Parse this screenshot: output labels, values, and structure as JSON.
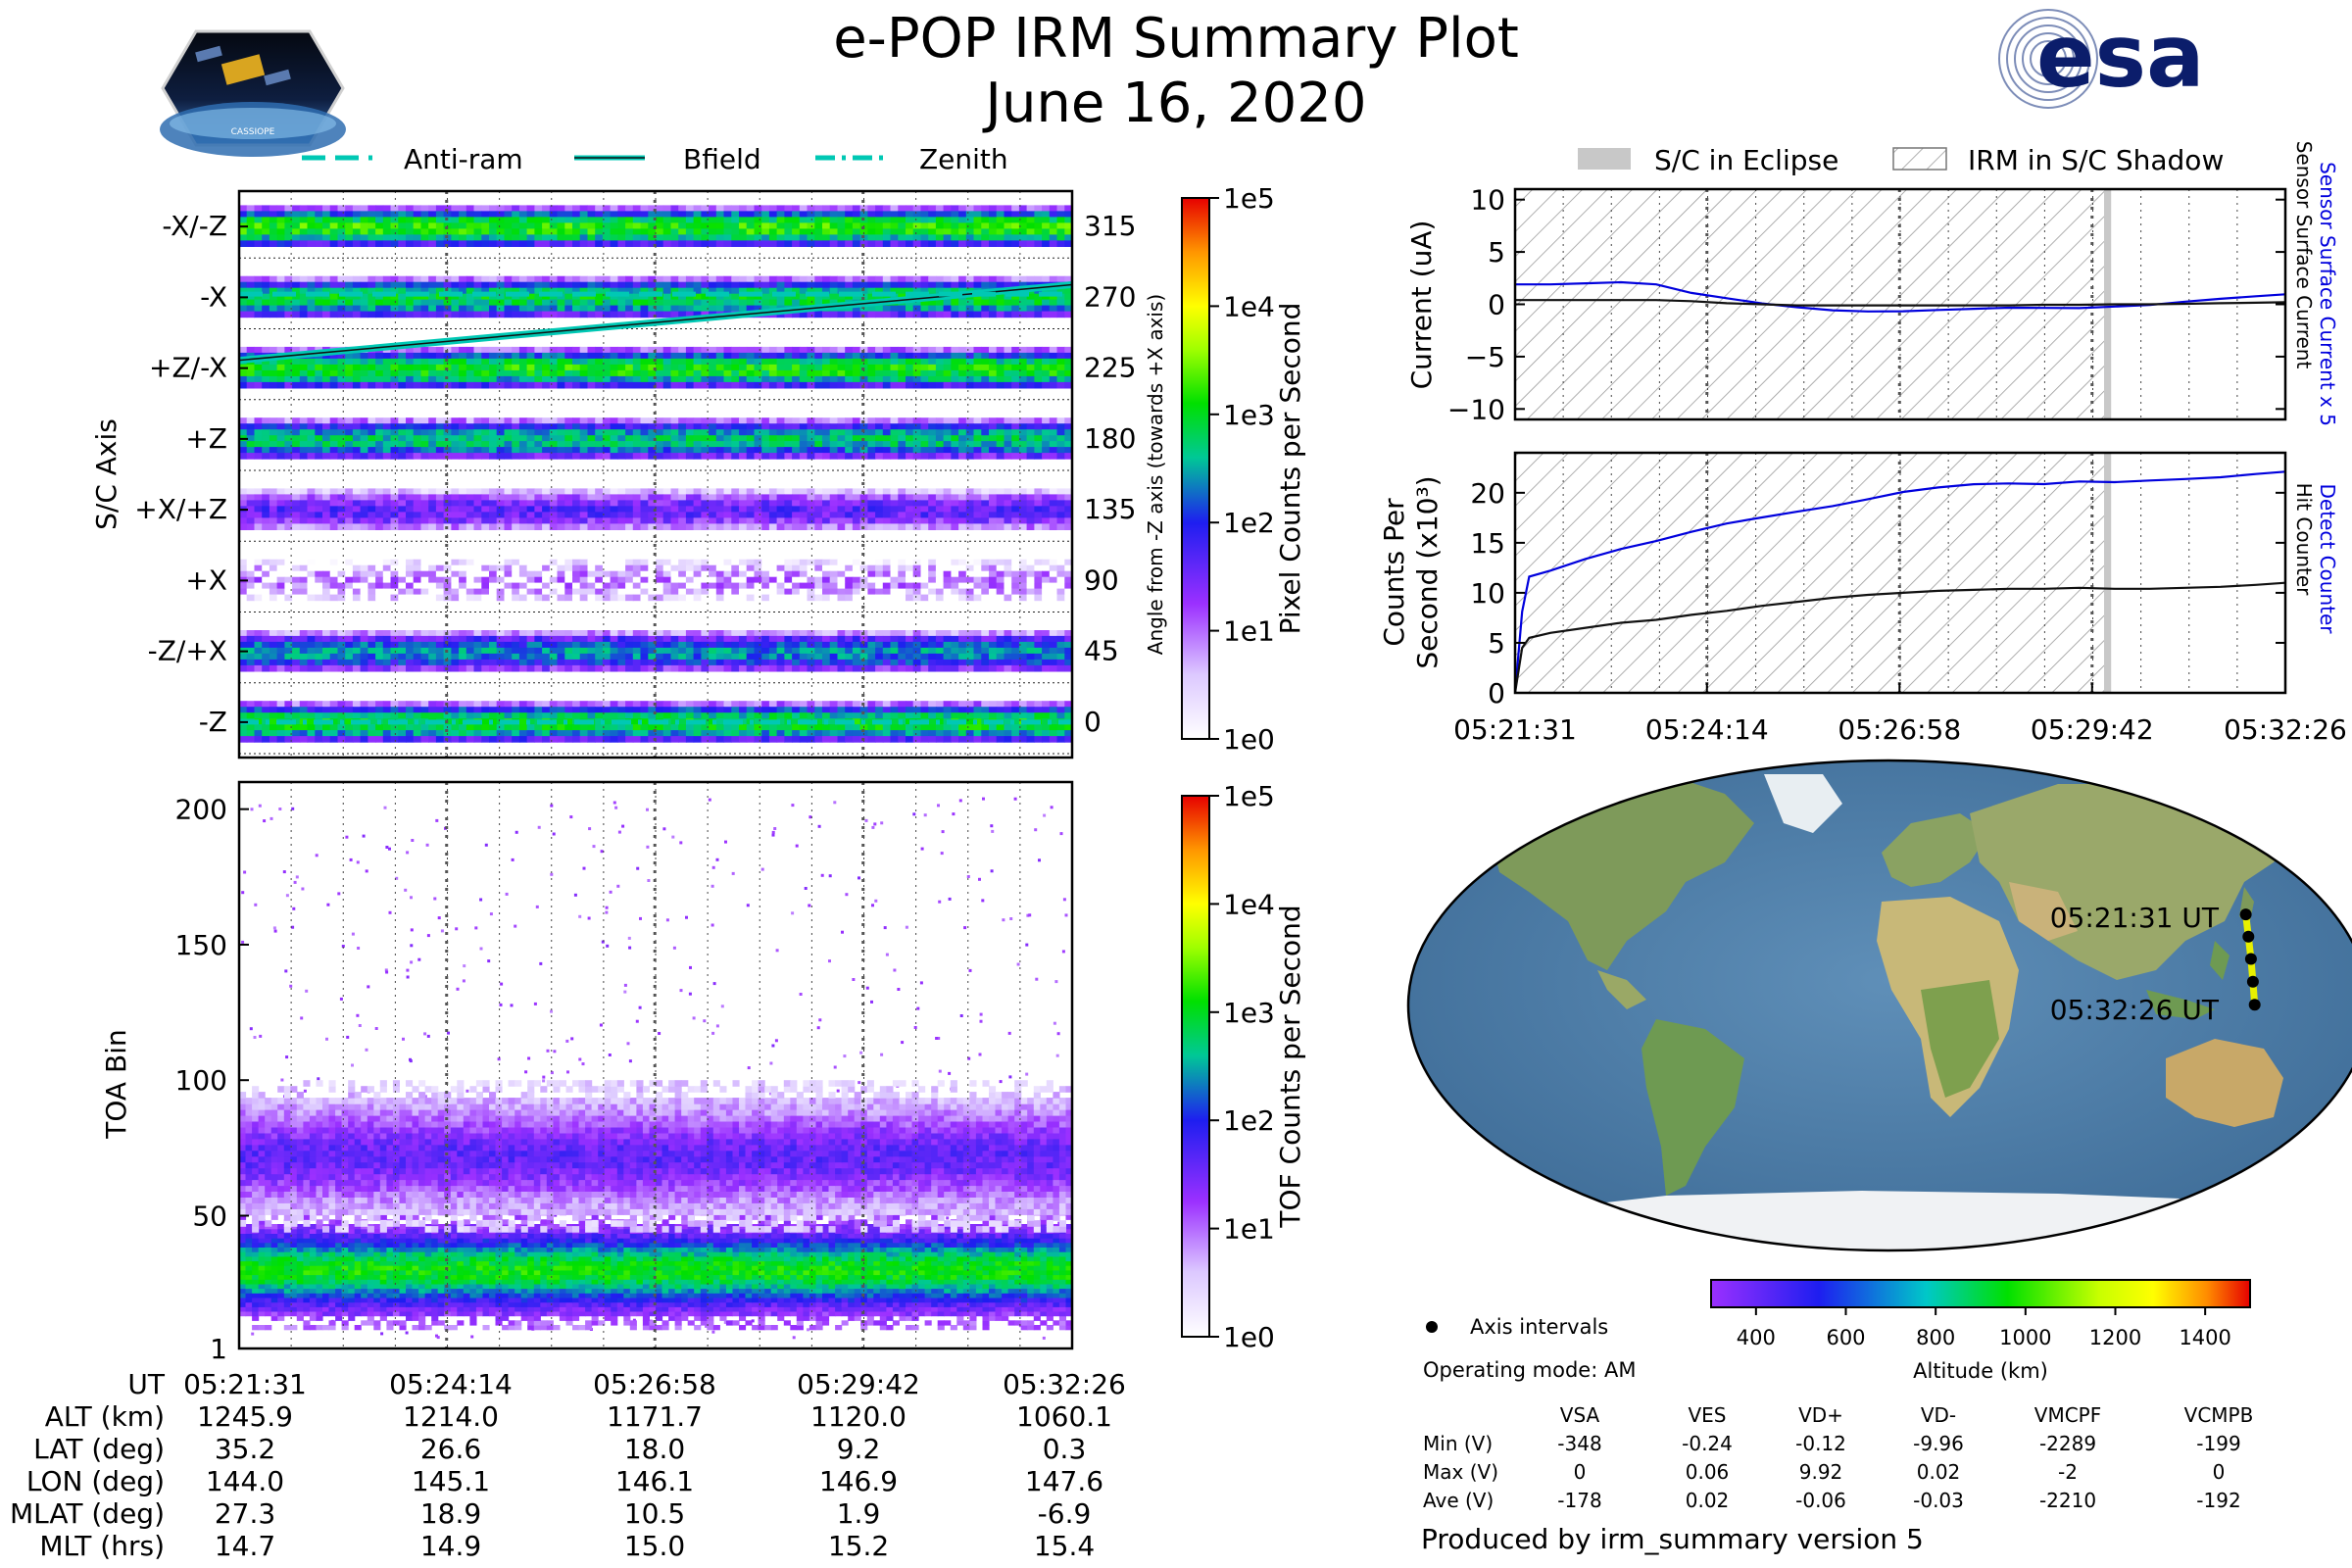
{
  "header": {
    "title": "e-POP IRM Summary Plot",
    "date": "June 16, 2020",
    "mission_logo_text": "CASSIOPE",
    "agency_logo_text": "esa"
  },
  "colors": {
    "bfield": "#00c8b4",
    "dark_line": "#111111",
    "blue_line": "#0000dd",
    "eclipse_gray": "#c8c8c8",
    "grid": "#555555"
  },
  "chart_data": [
    {
      "id": "sc-axis-panel",
      "type": "heatmap",
      "ylabel": "S/C Axis",
      "y2label": "Angle from -Z axis (towards +X axis)",
      "legend": [
        {
          "label": "Anti-ram",
          "style": "dashed"
        },
        {
          "label": "Bfield",
          "style": "solid"
        },
        {
          "label": "Zenith",
          "style": "dashdot"
        }
      ],
      "axes": [
        "-X/-Z",
        "-X",
        "+Z/-X",
        "+Z",
        "+X/+Z",
        "+X",
        "-Z/+X",
        "-Z"
      ],
      "angles": [
        "315",
        "270",
        "225",
        "180",
        "135",
        "90",
        "45",
        "0"
      ],
      "axis_peak_log_counts": [
        3.2,
        2.9,
        3.1,
        2.7,
        1.6,
        1.0,
        2.4,
        3.0
      ],
      "bfield_angle_start": 230,
      "bfield_angle_end": 278,
      "antiram_angle": 272,
      "zenith_angle": 0
    },
    {
      "id": "toa-panel",
      "type": "heatmap",
      "ylabel": "TOA Bin",
      "yticks": [
        "200",
        "150",
        "100",
        "50",
        "1"
      ],
      "ylim": [
        1,
        210
      ],
      "bands": [
        {
          "center": 30,
          "width": 22,
          "peak_log_counts": 3.1
        },
        {
          "center": 72,
          "width": 28,
          "peak_log_counts": 1.6
        }
      ]
    },
    {
      "id": "pixel-colorbar",
      "type": "colorbar",
      "label": "Pixel Counts per Second",
      "ticks": [
        "1e5",
        "1e4",
        "1e3",
        "1e2",
        "1e1",
        "1e0"
      ],
      "log_range": [
        0,
        5
      ]
    },
    {
      "id": "tof-colorbar",
      "type": "colorbar",
      "label": "TOF Counts per Second",
      "ticks": [
        "1e5",
        "1e4",
        "1e3",
        "1e2",
        "1e1",
        "1e0"
      ],
      "log_range": [
        0,
        5
      ]
    },
    {
      "id": "current-panel",
      "type": "line",
      "ylabel": "Current (uA)",
      "y2label_blue": "Sensor Surface Current x 5",
      "y2label_black": "Sensor Surface Current",
      "yticks": [
        "10",
        "5",
        "0",
        "−5",
        "−10"
      ],
      "ylim": [
        -11,
        11
      ],
      "x": [
        0,
        0.5,
        1,
        1.5,
        2,
        2.5,
        3,
        3.5,
        4,
        4.5,
        5,
        5.5,
        6,
        6.5,
        7,
        7.5,
        8,
        8.5,
        9,
        9.5,
        10,
        10.5,
        10.92
      ],
      "series": [
        {
          "name": "Sensor Surface Current x 5",
          "color": "blue",
          "values": [
            1.9,
            1.8,
            1.9,
            2.1,
            2.0,
            1.2,
            0.6,
            0.0,
            -0.4,
            -0.6,
            -0.6,
            -0.55,
            -0.5,
            -0.5,
            -0.45,
            -0.4,
            -0.3,
            -0.1,
            0.0,
            0.2,
            0.4,
            0.7,
            1.0
          ]
        },
        {
          "name": "Sensor Surface Current",
          "color": "black",
          "values": [
            0.4,
            0.4,
            0.4,
            0.4,
            0.4,
            0.3,
            0.1,
            0.0,
            -0.1,
            -0.1,
            -0.1,
            -0.1,
            -0.1,
            -0.1,
            -0.1,
            -0.05,
            -0.05,
            0.0,
            0.0,
            0.05,
            0.1,
            0.15,
            0.2
          ]
        }
      ],
      "legend": [
        {
          "label": "S/C in Eclipse",
          "style": "fill"
        },
        {
          "label": "IRM in S/C Shadow",
          "style": "hatch"
        }
      ],
      "shadow_range": [
        0,
        8.4
      ],
      "eclipse_range": [
        8.35,
        8.45
      ]
    },
    {
      "id": "counts-panel",
      "type": "line",
      "ylabel_line1": "Counts Per",
      "ylabel_line2": "Second (x10³)",
      "y2label_blue": "Detect Counter",
      "y2label_black": "Hit Counter",
      "yticks": [
        "20",
        "15",
        "10",
        "5",
        "0"
      ],
      "ylim": [
        0,
        24
      ],
      "x": [
        0,
        0.1,
        0.2,
        0.5,
        1,
        1.5,
        2,
        2.5,
        3,
        3.5,
        4,
        4.5,
        5,
        5.5,
        6,
        6.5,
        7,
        7.5,
        8,
        8.5,
        9,
        9.5,
        10,
        10.5,
        10.92
      ],
      "series": [
        {
          "name": "Detect Counter",
          "color": "blue",
          "values": [
            0,
            8,
            11.5,
            12.2,
            13.5,
            14.5,
            15.2,
            16.0,
            16.8,
            17.5,
            18.2,
            18.8,
            19.4,
            20.0,
            20.4,
            20.8,
            21.0,
            21.0,
            21.2,
            21.0,
            21.1,
            21.3,
            21.6,
            22.0,
            22.2
          ]
        },
        {
          "name": "Hit Counter",
          "color": "black",
          "values": [
            0,
            4.5,
            5.5,
            6.0,
            6.5,
            7.0,
            7.3,
            7.8,
            8.2,
            8.7,
            9.1,
            9.5,
            9.8,
            10.0,
            10.2,
            10.3,
            10.4,
            10.4,
            10.5,
            10.4,
            10.4,
            10.5,
            10.6,
            10.8,
            11.0
          ]
        }
      ]
    },
    {
      "id": "orbit-map",
      "type": "scatter",
      "title": "",
      "start_label": "05:21:31 UT",
      "end_label": "05:32:26 UT",
      "track_lon": [
        144.0,
        145.1,
        146.1,
        146.9,
        147.6
      ],
      "track_lat": [
        35.2,
        26.6,
        18.0,
        9.2,
        0.3
      ],
      "track_alt": [
        1245.9,
        1214.0,
        1171.7,
        1120.0,
        1060.1
      ]
    },
    {
      "id": "altitude-colorbar",
      "type": "colorbar",
      "label": "Altitude (km)",
      "ticks": [
        "400",
        "600",
        "800",
        "1000",
        "1200",
        "1400"
      ],
      "range": [
        300,
        1500
      ]
    }
  ],
  "time_axis": {
    "labels": [
      "05:21:31",
      "05:24:14",
      "05:26:58",
      "05:29:42",
      "05:32:26"
    ],
    "label_minutes": [
      0,
      2.72,
      5.45,
      8.18,
      10.92
    ]
  },
  "ephemeris": {
    "rows": [
      {
        "label": "UT",
        "values": [
          "05:21:31",
          "05:24:14",
          "05:26:58",
          "05:29:42",
          "05:32:26"
        ]
      },
      {
        "label": "ALT (km)",
        "values": [
          "1245.9",
          "1214.0",
          "1171.7",
          "1120.0",
          "1060.1"
        ]
      },
      {
        "label": "LAT (deg)",
        "values": [
          "35.2",
          "26.6",
          "18.0",
          "9.2",
          "0.3"
        ]
      },
      {
        "label": "LON (deg)",
        "values": [
          "144.0",
          "145.1",
          "146.1",
          "146.9",
          "147.6"
        ]
      },
      {
        "label": "MLAT (deg)",
        "values": [
          "27.3",
          "18.9",
          "10.5",
          "1.9",
          "-6.9"
        ]
      },
      {
        "label": "MLT (hrs)",
        "values": [
          "14.7",
          "14.9",
          "15.0",
          "15.2",
          "15.4"
        ]
      }
    ]
  },
  "map_legend": {
    "axis_intervals": "Axis intervals"
  },
  "operating_mode": "Operating mode: AM",
  "voltage_table": {
    "headers": [
      "VSA",
      "VES",
      "VD+",
      "VD-",
      "VMCPF",
      "VCMPB"
    ],
    "rows": [
      {
        "label": "Min (V)",
        "values": [
          "-348",
          "-0.24",
          "-0.12",
          "-9.96",
          "-2289",
          "-199"
        ]
      },
      {
        "label": "Max (V)",
        "values": [
          "0",
          "0.06",
          "9.92",
          "0.02",
          "-2",
          "0"
        ]
      },
      {
        "label": "Ave (V)",
        "values": [
          "-178",
          "0.02",
          "-0.06",
          "-0.03",
          "-2210",
          "-192"
        ]
      }
    ]
  },
  "footer": "Produced by irm_summary version 5"
}
